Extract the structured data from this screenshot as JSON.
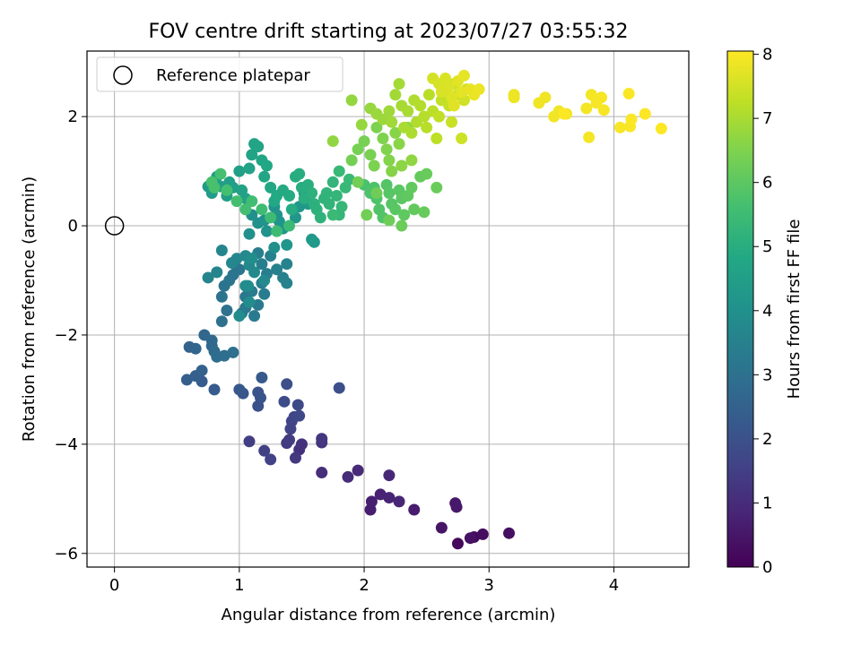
{
  "chart_data": {
    "type": "scatter",
    "title": "FOV centre drift starting at 2023/07/27 03:55:32",
    "xlabel": "Angular distance from reference (arcmin)",
    "ylabel": "Rotation from reference (arcmin)",
    "xlim": [
      -0.22,
      4.6
    ],
    "ylim": [
      -6.25,
      3.2
    ],
    "xticks": [
      0,
      1,
      2,
      3,
      4
    ],
    "yticks": [
      -6,
      -4,
      -2,
      0,
      2
    ],
    "xtick_labels": [
      "0",
      "1",
      "2",
      "3",
      "4"
    ],
    "ytick_labels": [
      "−6",
      "−4",
      "−2",
      "0",
      "2"
    ],
    "grid": true,
    "legend": {
      "placement": "top-left",
      "entries": [
        "Reference platepar"
      ]
    },
    "reference_point": {
      "x": 0,
      "y": 0,
      "label": "Reference platepar"
    },
    "colorbar": {
      "label": "Hours from first FF file",
      "min": 0,
      "max": 8.05,
      "ticks": [
        0,
        1,
        2,
        3,
        4,
        5,
        6,
        7,
        8
      ],
      "tick_labels": [
        "0",
        "1",
        "2",
        "3",
        "4",
        "5",
        "6",
        "7",
        "8"
      ],
      "colormap": "viridis"
    },
    "points": [
      [
        2.75,
        -5.82,
        0.15
      ],
      [
        2.88,
        -5.7,
        0.22
      ],
      [
        2.95,
        -5.65,
        0.28
      ],
      [
        3.16,
        -5.63,
        0.35
      ],
      [
        2.85,
        -5.72,
        0.4
      ],
      [
        2.62,
        -5.53,
        0.45
      ],
      [
        2.73,
        -5.08,
        0.52
      ],
      [
        2.74,
        -5.15,
        0.55
      ],
      [
        2.4,
        -5.2,
        0.6
      ],
      [
        2.05,
        -5.2,
        0.65
      ],
      [
        2.06,
        -5.05,
        0.7
      ],
      [
        2.13,
        -4.92,
        0.75
      ],
      [
        2.2,
        -4.98,
        0.8
      ],
      [
        2.28,
        -5.05,
        0.85
      ],
      [
        2.2,
        -4.57,
        0.9
      ],
      [
        1.95,
        -4.48,
        0.95
      ],
      [
        1.87,
        -4.6,
        1.0
      ],
      [
        1.66,
        -4.52,
        1.05
      ],
      [
        1.48,
        -4.1,
        1.1
      ],
      [
        1.5,
        -4.0,
        1.15
      ],
      [
        1.66,
        -3.97,
        1.2
      ],
      [
        1.66,
        -3.9,
        1.25
      ],
      [
        1.45,
        -4.25,
        1.3
      ],
      [
        1.38,
        -3.98,
        1.35
      ],
      [
        1.4,
        -3.92,
        1.4
      ],
      [
        1.08,
        -3.95,
        1.45
      ],
      [
        1.2,
        -4.12,
        1.5
      ],
      [
        1.25,
        -4.28,
        1.55
      ],
      [
        1.41,
        -3.72,
        1.6
      ],
      [
        1.42,
        -3.58,
        1.65
      ],
      [
        1.44,
        -3.5,
        1.7
      ],
      [
        1.48,
        -3.48,
        1.75
      ],
      [
        1.47,
        -3.28,
        1.8
      ],
      [
        1.36,
        -3.22,
        1.85
      ],
      [
        1.38,
        -2.9,
        1.9
      ],
      [
        1.8,
        -2.97,
        1.95
      ],
      [
        1.15,
        -3.3,
        2.0
      ],
      [
        1.17,
        -3.15,
        2.05
      ],
      [
        1.15,
        -3.05,
        2.1
      ],
      [
        1.03,
        -3.07,
        2.15
      ],
      [
        1.0,
        -3.0,
        2.2
      ],
      [
        1.18,
        -2.78,
        2.25
      ],
      [
        0.8,
        -3.0,
        2.3
      ],
      [
        0.7,
        -2.85,
        2.35
      ],
      [
        0.58,
        -2.82,
        2.4
      ],
      [
        0.65,
        -2.75,
        2.45
      ],
      [
        0.7,
        -2.65,
        2.5
      ],
      [
        0.6,
        -2.22,
        2.55
      ],
      [
        0.65,
        -2.25,
        2.6
      ],
      [
        0.72,
        -2.0,
        2.65
      ],
      [
        0.78,
        -2.1,
        2.7
      ],
      [
        0.78,
        -2.2,
        2.75
      ],
      [
        0.8,
        -2.3,
        2.8
      ],
      [
        0.82,
        -2.4,
        2.85
      ],
      [
        0.88,
        -2.38,
        2.9
      ],
      [
        0.95,
        -2.32,
        2.95
      ],
      [
        0.86,
        -1.75,
        3.0
      ],
      [
        0.9,
        -1.55,
        3.02
      ],
      [
        0.86,
        -1.3,
        3.05
      ],
      [
        0.88,
        -1.1,
        3.08
      ],
      [
        0.92,
        -1.0,
        3.1
      ],
      [
        0.95,
        -0.9,
        3.12
      ],
      [
        1.0,
        -0.8,
        3.15
      ],
      [
        0.96,
        -0.7,
        3.18
      ],
      [
        1.05,
        -1.3,
        3.2
      ],
      [
        1.05,
        -1.5,
        3.22
      ],
      [
        1.02,
        -1.6,
        3.25
      ],
      [
        1.12,
        -1.65,
        3.28
      ],
      [
        1.15,
        -1.45,
        3.3
      ],
      [
        1.1,
        -1.2,
        3.32
      ],
      [
        1.2,
        -1.25,
        3.35
      ],
      [
        1.18,
        -1.05,
        3.38
      ],
      [
        1.22,
        -0.88,
        3.4
      ],
      [
        1.18,
        -0.7,
        3.42
      ],
      [
        1.15,
        -0.5,
        3.45
      ],
      [
        1.25,
        -0.55,
        3.48
      ],
      [
        1.3,
        -0.8,
        3.5
      ],
      [
        1.35,
        -0.95,
        3.52
      ],
      [
        1.38,
        -1.05,
        3.55
      ],
      [
        1.38,
        -0.7,
        3.58
      ],
      [
        0.75,
        -0.95,
        3.6
      ],
      [
        0.82,
        -0.85,
        3.62
      ],
      [
        0.86,
        -0.45,
        3.65
      ],
      [
        0.94,
        -0.68,
        3.68
      ],
      [
        0.98,
        -0.6,
        3.7
      ],
      [
        1.05,
        -0.55,
        3.72
      ],
      [
        1.08,
        -0.72,
        3.75
      ],
      [
        1.12,
        -0.85,
        3.78
      ],
      [
        1.2,
        -1.0,
        3.8
      ],
      [
        1.05,
        -1.1,
        3.82
      ],
      [
        1.08,
        -1.4,
        3.85
      ],
      [
        1.0,
        -1.65,
        3.88
      ],
      [
        1.07,
        -1.1,
        3.9
      ],
      [
        1.1,
        -0.6,
        3.92
      ],
      [
        1.28,
        -0.4,
        3.95
      ],
      [
        1.08,
        -0.15,
        3.98
      ],
      [
        1.1,
        0.2,
        4.0
      ],
      [
        1.15,
        0.05,
        4.02
      ],
      [
        1.2,
        0.1,
        4.05
      ],
      [
        1.22,
        -0.1,
        4.08
      ],
      [
        1.28,
        0.35,
        4.1
      ],
      [
        1.3,
        0.2,
        4.12
      ],
      [
        1.32,
        0.08,
        4.15
      ],
      [
        1.35,
        -0.05,
        4.18
      ],
      [
        1.38,
        -0.35,
        4.2
      ],
      [
        1.45,
        0.15,
        4.22
      ],
      [
        1.48,
        0.35,
        4.25
      ],
      [
        1.52,
        0.6,
        4.28
      ],
      [
        1.55,
        0.4,
        4.3
      ],
      [
        1.58,
        -0.25,
        4.32
      ],
      [
        1.6,
        -0.3,
        4.35
      ],
      [
        0.75,
        0.72,
        4.38
      ],
      [
        0.78,
        0.6,
        4.4
      ],
      [
        0.82,
        0.9,
        4.42
      ],
      [
        0.85,
        0.72,
        4.45
      ],
      [
        0.9,
        0.55,
        4.48
      ],
      [
        0.92,
        0.8,
        4.5
      ],
      [
        0.95,
        0.7,
        4.52
      ],
      [
        1.0,
        1.0,
        4.55
      ],
      [
        1.02,
        0.65,
        4.58
      ],
      [
        1.05,
        0.5,
        4.6
      ],
      [
        1.08,
        1.05,
        4.62
      ],
      [
        1.1,
        1.3,
        4.65
      ],
      [
        1.12,
        1.5,
        4.68
      ],
      [
        1.15,
        1.45,
        4.7
      ],
      [
        1.18,
        1.2,
        4.72
      ],
      [
        1.2,
        0.9,
        4.75
      ],
      [
        1.22,
        1.1,
        4.78
      ],
      [
        1.25,
        0.7,
        4.8
      ],
      [
        1.28,
        0.45,
        4.82
      ],
      [
        1.3,
        0.55,
        4.85
      ],
      [
        1.35,
        0.65,
        4.88
      ],
      [
        1.4,
        0.55,
        4.9
      ],
      [
        1.42,
        0.3,
        4.92
      ],
      [
        1.45,
        0.9,
        4.95
      ],
      [
        1.48,
        0.95,
        4.98
      ],
      [
        1.5,
        0.7,
        5.0
      ],
      [
        1.52,
        0.5,
        5.02
      ],
      [
        1.55,
        0.75,
        5.05
      ],
      [
        1.58,
        0.6,
        5.08
      ],
      [
        1.6,
        0.4,
        5.1
      ],
      [
        1.62,
        0.3,
        5.12
      ],
      [
        1.65,
        0.15,
        5.15
      ],
      [
        1.68,
        0.5,
        5.18
      ],
      [
        1.7,
        0.6,
        5.2
      ],
      [
        1.72,
        0.4,
        5.22
      ],
      [
        1.75,
        0.8,
        5.25
      ],
      [
        1.78,
        0.55,
        5.28
      ],
      [
        1.8,
        0.2,
        5.3
      ],
      [
        1.82,
        0.35,
        5.32
      ],
      [
        1.85,
        0.7,
        5.35
      ],
      [
        1.88,
        0.85,
        5.38
      ],
      [
        1.8,
        1.0,
        5.4
      ],
      [
        1.75,
        0.2,
        5.42
      ],
      [
        1.4,
        0.0,
        5.45
      ],
      [
        1.3,
        -0.1,
        5.48
      ],
      [
        1.25,
        0.15,
        5.5
      ],
      [
        1.18,
        0.3,
        5.52
      ],
      [
        1.1,
        0.45,
        5.55
      ],
      [
        1.05,
        0.3,
        5.58
      ],
      [
        0.98,
        0.45,
        5.6
      ],
      [
        0.9,
        0.65,
        5.62
      ],
      [
        0.85,
        0.95,
        5.65
      ],
      [
        0.8,
        0.7,
        5.68
      ],
      [
        0.78,
        0.8,
        5.7
      ],
      [
        2.0,
        0.75,
        5.72
      ],
      [
        2.05,
        0.6,
        5.75
      ],
      [
        2.08,
        0.7,
        5.78
      ],
      [
        2.1,
        0.5,
        5.8
      ],
      [
        2.12,
        0.3,
        5.82
      ],
      [
        2.15,
        0.15,
        5.85
      ],
      [
        2.18,
        0.75,
        5.88
      ],
      [
        2.2,
        0.6,
        5.9
      ],
      [
        2.22,
        0.4,
        5.92
      ],
      [
        2.25,
        0.3,
        5.95
      ],
      [
        2.28,
        0.65,
        5.98
      ],
      [
        2.3,
        0.5,
        6.0
      ],
      [
        2.32,
        0.2,
        6.02
      ],
      [
        2.35,
        0.55,
        6.05
      ],
      [
        2.38,
        0.7,
        6.08
      ],
      [
        2.4,
        0.3,
        6.1
      ],
      [
        2.45,
        0.9,
        6.12
      ],
      [
        2.48,
        0.25,
        6.15
      ],
      [
        2.5,
        0.95,
        6.18
      ],
      [
        2.58,
        0.7,
        6.2
      ],
      [
        2.3,
        0.0,
        6.22
      ],
      [
        2.2,
        0.1,
        6.25
      ],
      [
        2.1,
        0.6,
        6.28
      ],
      [
        2.02,
        0.2,
        6.3
      ],
      [
        1.95,
        0.8,
        6.32
      ],
      [
        1.9,
        1.2,
        6.35
      ],
      [
        1.95,
        1.4,
        6.38
      ],
      [
        2.0,
        1.55,
        6.4
      ],
      [
        2.05,
        1.3,
        6.42
      ],
      [
        2.08,
        1.1,
        6.45
      ],
      [
        2.1,
        1.8,
        6.48
      ],
      [
        2.15,
        1.6,
        6.5
      ],
      [
        2.18,
        1.4,
        6.52
      ],
      [
        2.2,
        1.2,
        6.55
      ],
      [
        2.22,
        1.0,
        6.58
      ],
      [
        2.25,
        1.7,
        6.6
      ],
      [
        2.28,
        1.5,
        6.62
      ],
      [
        2.3,
        1.1,
        6.65
      ],
      [
        2.35,
        1.8,
        6.68
      ],
      [
        2.38,
        1.2,
        6.7
      ],
      [
        1.75,
        1.55,
        6.72
      ],
      [
        1.9,
        2.3,
        6.75
      ],
      [
        1.98,
        1.85,
        6.78
      ],
      [
        2.05,
        2.15,
        6.8
      ],
      [
        2.1,
        2.05,
        6.82
      ],
      [
        2.15,
        1.95,
        6.85
      ],
      [
        2.2,
        2.1,
        6.88
      ],
      [
        2.22,
        1.9,
        6.9
      ],
      [
        2.25,
        2.4,
        6.92
      ],
      [
        2.28,
        2.6,
        6.95
      ],
      [
        2.3,
        2.2,
        6.98
      ],
      [
        2.32,
        1.8,
        7.0
      ],
      [
        2.35,
        2.1,
        7.02
      ],
      [
        2.38,
        1.7,
        7.05
      ],
      [
        2.4,
        2.3,
        7.08
      ],
      [
        2.42,
        1.9,
        7.1
      ],
      [
        2.45,
        2.2,
        7.12
      ],
      [
        2.48,
        2.0,
        7.15
      ],
      [
        2.5,
        1.8,
        7.18
      ],
      [
        2.52,
        2.4,
        7.2
      ],
      [
        2.55,
        2.1,
        7.22
      ],
      [
        2.58,
        1.6,
        7.25
      ],
      [
        2.6,
        2.0,
        7.28
      ],
      [
        2.62,
        2.3,
        7.3
      ],
      [
        2.65,
        2.5,
        7.32
      ],
      [
        2.68,
        2.2,
        7.35
      ],
      [
        2.7,
        1.9,
        7.38
      ],
      [
        2.72,
        2.6,
        7.4
      ],
      [
        2.75,
        2.4,
        7.42
      ],
      [
        2.78,
        1.6,
        7.45
      ],
      [
        2.8,
        2.3,
        7.48
      ],
      [
        2.82,
        2.5,
        7.5
      ],
      [
        2.55,
        2.7,
        7.52
      ],
      [
        2.6,
        2.6,
        7.55
      ],
      [
        2.62,
        2.45,
        7.58
      ],
      [
        2.65,
        2.7,
        7.6
      ],
      [
        2.68,
        2.55,
        7.62
      ],
      [
        2.7,
        2.35,
        7.65
      ],
      [
        2.72,
        2.2,
        7.68
      ],
      [
        2.75,
        2.65,
        7.7
      ],
      [
        2.78,
        2.45,
        7.72
      ],
      [
        2.8,
        2.75,
        7.75
      ],
      [
        2.85,
        2.5,
        7.78
      ],
      [
        2.88,
        2.4,
        7.8
      ],
      [
        2.92,
        2.5,
        7.82
      ],
      [
        3.2,
        2.4,
        7.85
      ],
      [
        3.2,
        2.35,
        7.86
      ],
      [
        3.4,
        2.25,
        7.88
      ],
      [
        3.45,
        2.35,
        7.88
      ],
      [
        3.52,
        2.0,
        7.9
      ],
      [
        3.56,
        2.1,
        7.9
      ],
      [
        3.62,
        2.05,
        7.92
      ],
      [
        3.78,
        2.15,
        7.92
      ],
      [
        3.8,
        1.62,
        7.94
      ],
      [
        3.82,
        2.4,
        7.94
      ],
      [
        3.86,
        2.25,
        7.96
      ],
      [
        3.9,
        2.35,
        7.96
      ],
      [
        3.92,
        2.12,
        7.98
      ],
      [
        4.05,
        1.8,
        7.98
      ],
      [
        4.12,
        2.42,
        8.0
      ],
      [
        4.13,
        1.82,
        8.0
      ],
      [
        4.14,
        1.95,
        8.02
      ],
      [
        4.25,
        2.05,
        8.02
      ],
      [
        4.38,
        1.78,
        8.04
      ],
      [
        3.6,
        2.05,
        8.04
      ]
    ]
  }
}
